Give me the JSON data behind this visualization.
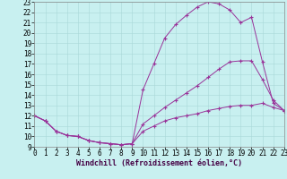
{
  "xlabel": "Windchill (Refroidissement éolien,°C)",
  "bg_color": "#c8f0f0",
  "grid_color": "#a8d8d8",
  "line_color": "#993399",
  "xlim": [
    0,
    23
  ],
  "ylim": [
    9,
    23
  ],
  "xticks": [
    0,
    1,
    2,
    3,
    4,
    5,
    6,
    7,
    8,
    9,
    10,
    11,
    12,
    13,
    14,
    15,
    16,
    17,
    18,
    19,
    20,
    21,
    22,
    23
  ],
  "yticks": [
    9,
    10,
    11,
    12,
    13,
    14,
    15,
    16,
    17,
    18,
    19,
    20,
    21,
    22,
    23
  ],
  "line1_x": [
    0,
    1,
    2,
    3,
    4,
    5,
    6,
    7,
    8,
    9,
    10,
    11,
    12,
    13,
    14,
    15,
    16,
    17,
    18,
    19,
    20,
    21,
    22,
    23
  ],
  "line1_y": [
    12.0,
    11.5,
    10.5,
    10.1,
    10.0,
    9.6,
    9.4,
    9.3,
    9.2,
    9.3,
    14.5,
    17.0,
    19.5,
    20.8,
    21.7,
    22.5,
    23.0,
    22.8,
    22.2,
    21.0,
    21.5,
    17.2,
    13.2,
    12.5
  ],
  "line2_x": [
    0,
    1,
    2,
    3,
    4,
    5,
    6,
    7,
    8,
    9,
    10,
    11,
    12,
    13,
    14,
    15,
    16,
    17,
    18,
    19,
    20,
    21,
    22,
    23
  ],
  "line2_y": [
    12.0,
    11.5,
    10.5,
    10.1,
    10.0,
    9.6,
    9.4,
    9.3,
    9.2,
    9.3,
    11.2,
    12.0,
    12.8,
    13.5,
    14.2,
    14.9,
    15.7,
    16.5,
    17.2,
    17.3,
    17.3,
    15.5,
    13.5,
    12.5
  ],
  "line3_x": [
    0,
    1,
    2,
    3,
    4,
    5,
    6,
    7,
    8,
    9,
    10,
    11,
    12,
    13,
    14,
    15,
    16,
    17,
    18,
    19,
    20,
    21,
    22,
    23
  ],
  "line3_y": [
    12.0,
    11.5,
    10.5,
    10.1,
    10.0,
    9.6,
    9.4,
    9.3,
    9.2,
    9.3,
    10.5,
    11.0,
    11.5,
    11.8,
    12.0,
    12.2,
    12.5,
    12.7,
    12.9,
    13.0,
    13.0,
    13.2,
    12.8,
    12.5
  ],
  "tick_fontsize": 5.5,
  "xlabel_fontsize": 6.0
}
